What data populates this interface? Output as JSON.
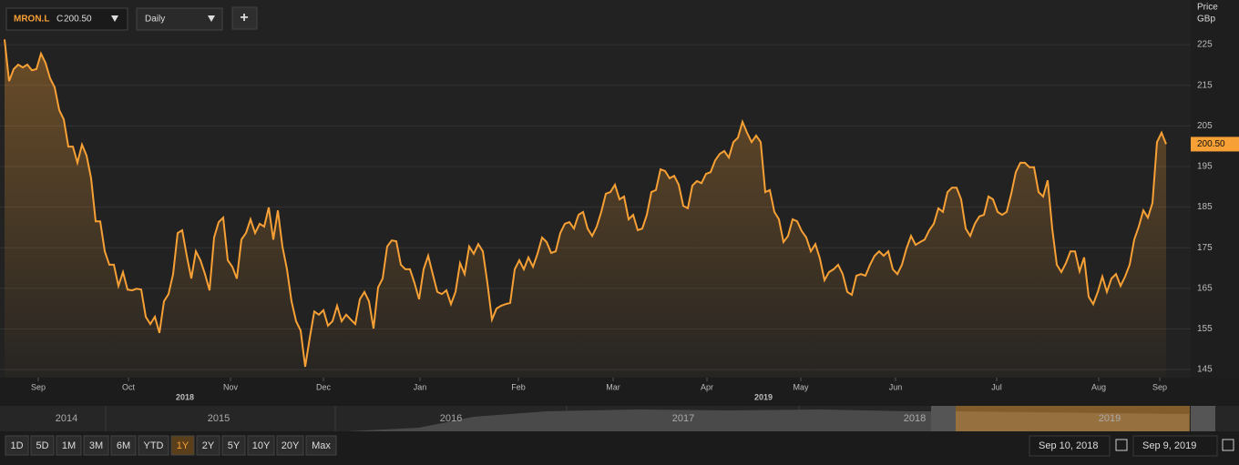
{
  "chart_data": {
    "type": "line",
    "ticker": "MRON.L",
    "close_label": "C",
    "close": {
      "value": 200.5,
      "label": "200.50"
    },
    "interval": "Daily",
    "add_button": "+",
    "y_axis_title": "Price",
    "y_axis_unit": "GBp",
    "color": "#f7a035",
    "grid": true,
    "ylim": [
      143,
      236
    ],
    "yticks": [
      145,
      155,
      165,
      175,
      185,
      195,
      205,
      215,
      225
    ],
    "xlim": [
      0,
      256
    ],
    "xticks": [
      {
        "value": 7.4,
        "label": "Sep"
      },
      {
        "value": 27.2,
        "label": "Oct"
      },
      {
        "value": 49.6,
        "label": "Nov"
      },
      {
        "value": 70,
        "label": "Dec"
      },
      {
        "value": 91.2,
        "label": "Jan"
      },
      {
        "value": 112.8,
        "label": "Feb"
      },
      {
        "value": 133.6,
        "label": "Mar"
      },
      {
        "value": 154.2,
        "label": "Apr"
      },
      {
        "value": 174.8,
        "label": "May"
      },
      {
        "value": 195.6,
        "label": "Jun"
      },
      {
        "value": 217.8,
        "label": "Jul"
      },
      {
        "value": 240.2,
        "label": "Aug"
      },
      {
        "value": 253.6,
        "label": "Sep"
      }
    ],
    "year_ticks": [
      {
        "value": 39.6,
        "label": "2018"
      },
      {
        "value": 166.6,
        "label": "2019"
      }
    ],
    "values": [
      226.3,
      216.0,
      219.0,
      220.1,
      219.4,
      220.1,
      218.7,
      219.0,
      222.8,
      220.5,
      216.7,
      214.5,
      208.9,
      206.6,
      199.9,
      199.9,
      195.9,
      200.4,
      197.7,
      192.1,
      181.5,
      181.5,
      174.1,
      170.8,
      170.8,
      165.6,
      169.0,
      164.7,
      164.5,
      164.9,
      164.7,
      158.0,
      156.2,
      158.0,
      154.0,
      161.8,
      163.6,
      168.5,
      178.6,
      179.3,
      173.0,
      167.4,
      174.1,
      171.9,
      168.5,
      164.5,
      177.5,
      181.3,
      182.4,
      171.9,
      170.3,
      167.4,
      177.0,
      178.6,
      182.0,
      178.6,
      180.9,
      180.2,
      184.9,
      177.0,
      184.2,
      175.3,
      169.7,
      161.8,
      156.9,
      154.6,
      145.7,
      152.8,
      159.3,
      158.5,
      159.6,
      155.8,
      156.9,
      160.7,
      156.9,
      158.5,
      157.3,
      156.2,
      162.3,
      164.1,
      161.8,
      155.1,
      165.2,
      167.4,
      175.3,
      176.8,
      176.6,
      170.8,
      169.7,
      169.7,
      166.3,
      162.3,
      169.7,
      173.0,
      168.5,
      164.1,
      163.6,
      164.5,
      161.1,
      164.1,
      171.2,
      168.5,
      175.3,
      173.5,
      175.9,
      174.1,
      166.3,
      157.3,
      160.0,
      160.7,
      161.1,
      161.4,
      169.7,
      171.9,
      169.7,
      172.6,
      170.3,
      173.5,
      177.5,
      176.4,
      173.7,
      174.1,
      178.6,
      180.9,
      181.3,
      179.7,
      183.1,
      183.8,
      179.7,
      177.9,
      180.2,
      183.8,
      188.3,
      188.7,
      190.5,
      186.9,
      187.6,
      182.0,
      183.1,
      179.3,
      179.7,
      183.1,
      188.7,
      189.2,
      194.3,
      193.9,
      192.1,
      192.7,
      190.5,
      185.3,
      184.7,
      190.3,
      191.4,
      190.9,
      193.2,
      193.6,
      196.5,
      198.1,
      198.8,
      197.2,
      201.0,
      202.1,
      206.0,
      203.3,
      201.0,
      202.6,
      201.0,
      188.7,
      189.2,
      183.8,
      182.0,
      176.4,
      177.9,
      182.0,
      181.5,
      179.1,
      177.5,
      174.1,
      175.9,
      172.3,
      167.0,
      169.0,
      169.7,
      170.8,
      168.5,
      164.1,
      163.4,
      168.1,
      168.5,
      168.1,
      170.8,
      173.0,
      174.1,
      173.0,
      174.1,
      169.7,
      168.5,
      170.8,
      174.8,
      177.9,
      175.7,
      176.4,
      177.0,
      179.3,
      180.9,
      184.7,
      183.8,
      188.7,
      189.8,
      189.8,
      186.9,
      179.7,
      177.9,
      180.9,
      182.7,
      183.1,
      187.6,
      186.9,
      183.8,
      183.1,
      183.8,
      188.3,
      193.6,
      195.9,
      195.9,
      194.8,
      194.8,
      188.7,
      187.6,
      191.6,
      179.7,
      170.8,
      169.0,
      171.2,
      174.1,
      174.1,
      169.2,
      172.6,
      162.9,
      161.1,
      164.1,
      167.9,
      164.1,
      167.4,
      168.5,
      165.6,
      167.9,
      170.8,
      177.0,
      180.2,
      184.2,
      182.4,
      186.0,
      201.0,
      203.3,
      200.5
    ],
    "navigator_years": [
      "2014",
      "2015",
      "2016",
      "2017",
      "2018",
      "2019"
    ],
    "range_buttons": [
      "1D",
      "5D",
      "1M",
      "3M",
      "6M",
      "YTD",
      "1Y",
      "2Y",
      "5Y",
      "10Y",
      "20Y",
      "Max"
    ],
    "active_range": "1Y",
    "date_from": "Sep 10, 2018",
    "date_to": "Sep 9, 2019"
  }
}
